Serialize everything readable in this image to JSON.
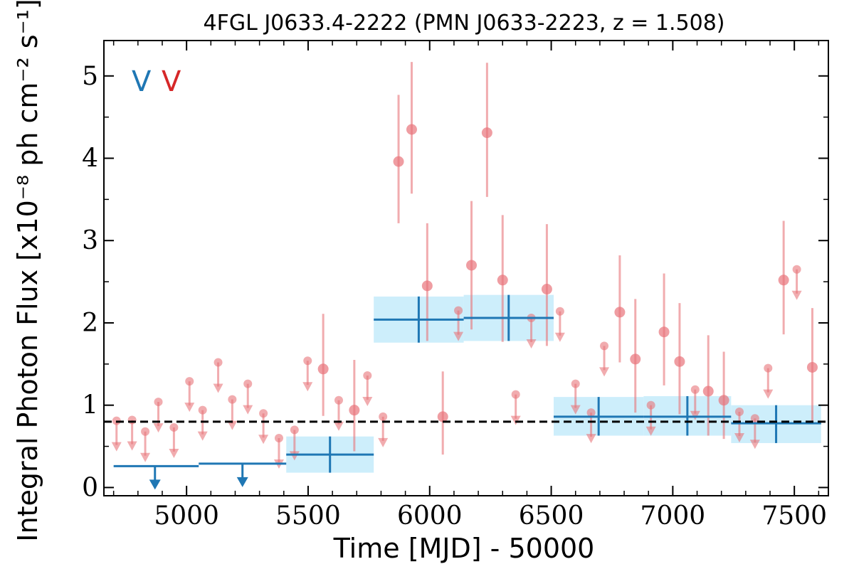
{
  "chart_data": {
    "type": "scatter",
    "title": "4FGL J0633.4-2222 (PMN J0633-2223, z = 1.508)",
    "xlabel": "Time [MJD] - 50000",
    "ylabel": "Integral Photon Flux [x10⁻⁸ ph cm⁻² s⁻¹]",
    "xlim": [
      4660,
      7640
    ],
    "ylim": [
      -0.1,
      5.43
    ],
    "x_ticks": [
      "5000",
      "5500",
      "6000",
      "6500",
      "7000",
      "7500"
    ],
    "y_ticks": [
      "0",
      "1",
      "2",
      "3",
      "4",
      "5"
    ],
    "x_tick_values": [
      5000,
      5500,
      6000,
      6500,
      7000,
      7500
    ],
    "y_tick_values": [
      0,
      1,
      2,
      3,
      4,
      5
    ],
    "legend": {
      "labels": [
        "V",
        "V"
      ],
      "colors": [
        "#1f77b4",
        "#d62728"
      ],
      "placement": "top-left"
    },
    "reference_line": {
      "y": 0.8,
      "style": "dashed",
      "color": "#000000"
    },
    "series": [
      {
        "color": "#e8747a",
        "points": [
          [
            4712,
            0.81,
            null,
            null
          ],
          [
            4776,
            0.82,
            null,
            null
          ],
          [
            4830,
            0.68,
            null,
            null
          ],
          [
            4884,
            1.04,
            null,
            null
          ],
          [
            4948,
            0.73,
            null,
            null
          ],
          [
            5012,
            1.29,
            null,
            null
          ],
          [
            5066,
            0.94,
            null,
            null
          ],
          [
            5130,
            1.52,
            null,
            null
          ],
          [
            5188,
            1.07,
            null,
            null
          ],
          [
            5252,
            1.26,
            null,
            null
          ],
          [
            5316,
            0.9,
            null,
            null
          ],
          [
            5380,
            0.6,
            null,
            null
          ],
          [
            5444,
            0.7,
            null,
            null
          ],
          [
            5498,
            1.54,
            null,
            null
          ],
          [
            5562,
            1.44,
            0.87,
            2.11
          ],
          [
            5626,
            1.06,
            null,
            null
          ],
          [
            5690,
            0.94,
            0.44,
            1.55
          ],
          [
            5744,
            1.36,
            null,
            null
          ],
          [
            5808,
            0.86,
            null,
            null
          ],
          [
            5872,
            3.96,
            3.21,
            4.77
          ],
          [
            5926,
            4.35,
            3.57,
            5.17
          ],
          [
            5990,
            2.45,
            1.78,
            3.21
          ],
          [
            6054,
            0.86,
            0.4,
            1.41
          ],
          [
            6118,
            2.15,
            null,
            null
          ],
          [
            6172,
            2.7,
            1.92,
            3.48
          ],
          [
            6236,
            4.31,
            3.53,
            5.16
          ],
          [
            6300,
            2.52,
            1.77,
            3.31
          ],
          [
            6354,
            1.13,
            null,
            null
          ],
          [
            6418,
            2.06,
            null,
            null
          ],
          [
            6482,
            2.41,
            1.72,
            3.2
          ],
          [
            6536,
            2.14,
            null,
            null
          ],
          [
            6600,
            1.26,
            null,
            null
          ],
          [
            6664,
            0.91,
            null,
            null
          ],
          [
            6718,
            1.72,
            null,
            null
          ],
          [
            6782,
            2.13,
            1.52,
            2.82
          ],
          [
            6846,
            1.56,
            0.91,
            2.29
          ],
          [
            6910,
            1.0,
            null,
            null
          ],
          [
            6964,
            1.89,
            1.24,
            2.6
          ],
          [
            7028,
            1.53,
            0.89,
            2.24
          ],
          [
            7092,
            1.19,
            null,
            null
          ],
          [
            7146,
            1.17,
            0.63,
            1.85
          ],
          [
            7210,
            1.06,
            0.59,
            1.65
          ],
          [
            7274,
            0.92,
            null,
            null
          ],
          [
            7338,
            0.84,
            null,
            null
          ],
          [
            7392,
            1.45,
            null,
            null
          ],
          [
            7456,
            2.52,
            1.86,
            3.24
          ],
          [
            7510,
            2.65,
            null,
            null
          ],
          [
            7574,
            1.46,
            0.78,
            2.18
          ]
        ],
        "upper_limits": [
          4712,
          4776,
          4830,
          4884,
          4948,
          5012,
          5066,
          5130,
          5188,
          5252,
          5316,
          5380,
          5444,
          5498,
          5626,
          5744,
          5808,
          6118,
          6354,
          6418,
          6536,
          6600,
          6664,
          6718,
          6910,
          7092,
          7274,
          7338,
          7392,
          7510
        ]
      },
      {
        "color": "#1f77b4",
        "bins": [
          [
            4700,
            5050,
            0.26,
            null,
            null,
            true,
            4870
          ],
          [
            5050,
            5410,
            0.29,
            null,
            null,
            true,
            5230
          ],
          [
            5410,
            5770,
            0.4,
            0.18,
            0.62,
            false,
            5590
          ],
          [
            5770,
            6140,
            2.04,
            1.76,
            2.32,
            false,
            5955
          ],
          [
            6140,
            6510,
            2.06,
            1.78,
            2.34,
            false,
            6325
          ],
          [
            6510,
            6880,
            0.86,
            0.63,
            1.1,
            false,
            6695
          ],
          [
            6880,
            7240,
            0.86,
            0.63,
            1.11,
            false,
            7060
          ],
          [
            7240,
            7610,
            0.78,
            0.54,
            1.0,
            false,
            7425
          ]
        ]
      }
    ]
  }
}
